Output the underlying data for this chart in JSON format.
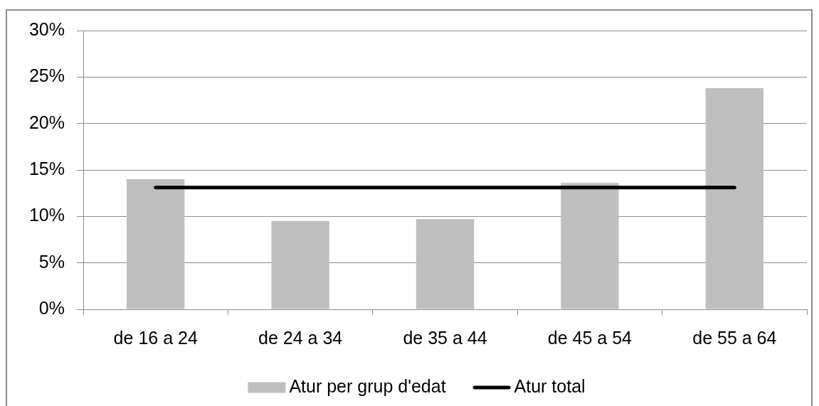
{
  "chart_data": {
    "type": "bar",
    "categories": [
      "de 16 a 24",
      "de 24 a 34",
      "de 35 a 44",
      "de 45 a 54",
      "de 55 a 64"
    ],
    "series": [
      {
        "name": "Atur per grup d'edat",
        "color": "#bfbfbf",
        "values": [
          14.0,
          9.5,
          9.7,
          13.6,
          23.8
        ]
      },
      {
        "name": "Atur total",
        "type": "line",
        "color": "#000000",
        "values": [
          13.1,
          13.1,
          13.1,
          13.1,
          13.1
        ]
      }
    ],
    "ylim": [
      0,
      30
    ],
    "yticks": [
      {
        "value": 0,
        "label": "0%"
      },
      {
        "value": 5,
        "label": "5%"
      },
      {
        "value": 10,
        "label": "10%"
      },
      {
        "value": 15,
        "label": "15%"
      },
      {
        "value": 20,
        "label": "20%"
      },
      {
        "value": 25,
        "label": "25%"
      },
      {
        "value": 30,
        "label": "30%"
      }
    ],
    "grid": "y",
    "legend": "bottom"
  }
}
